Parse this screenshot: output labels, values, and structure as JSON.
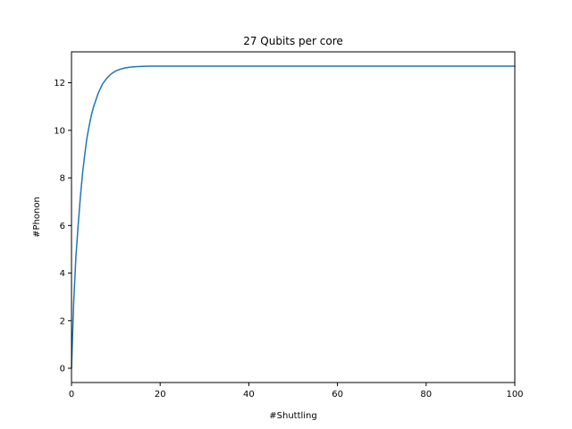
{
  "chart_data": {
    "type": "line",
    "title": "27 Qubits per core",
    "xlabel": "#Shuttling",
    "ylabel": "#Phonon",
    "xlim": [
      0,
      100
    ],
    "ylim": [
      -0.6,
      13.3
    ],
    "xticks": [
      0,
      20,
      40,
      60,
      80,
      100
    ],
    "yticks": [
      0,
      2,
      4,
      6,
      8,
      10,
      12
    ],
    "grid": false,
    "series": [
      {
        "color": "#1f77b4",
        "x": [
          0,
          0.5,
          1,
          1.5,
          2,
          2.5,
          3,
          3.5,
          4,
          4.5,
          5,
          6,
          7,
          8,
          9,
          10,
          11,
          12,
          13,
          14,
          15,
          16,
          17,
          18,
          19,
          20,
          22,
          25,
          30,
          40,
          50,
          60,
          70,
          80,
          90,
          100
        ],
        "y": [
          0,
          2.8,
          4.7,
          6.0,
          7.2,
          8.2,
          9.0,
          9.7,
          10.2,
          10.65,
          11.0,
          11.55,
          11.95,
          12.2,
          12.38,
          12.5,
          12.57,
          12.62,
          12.65,
          12.67,
          12.68,
          12.69,
          12.695,
          12.7,
          12.7,
          12.7,
          12.7,
          12.7,
          12.7,
          12.7,
          12.7,
          12.7,
          12.7,
          12.7,
          12.7,
          12.7
        ]
      }
    ]
  }
}
